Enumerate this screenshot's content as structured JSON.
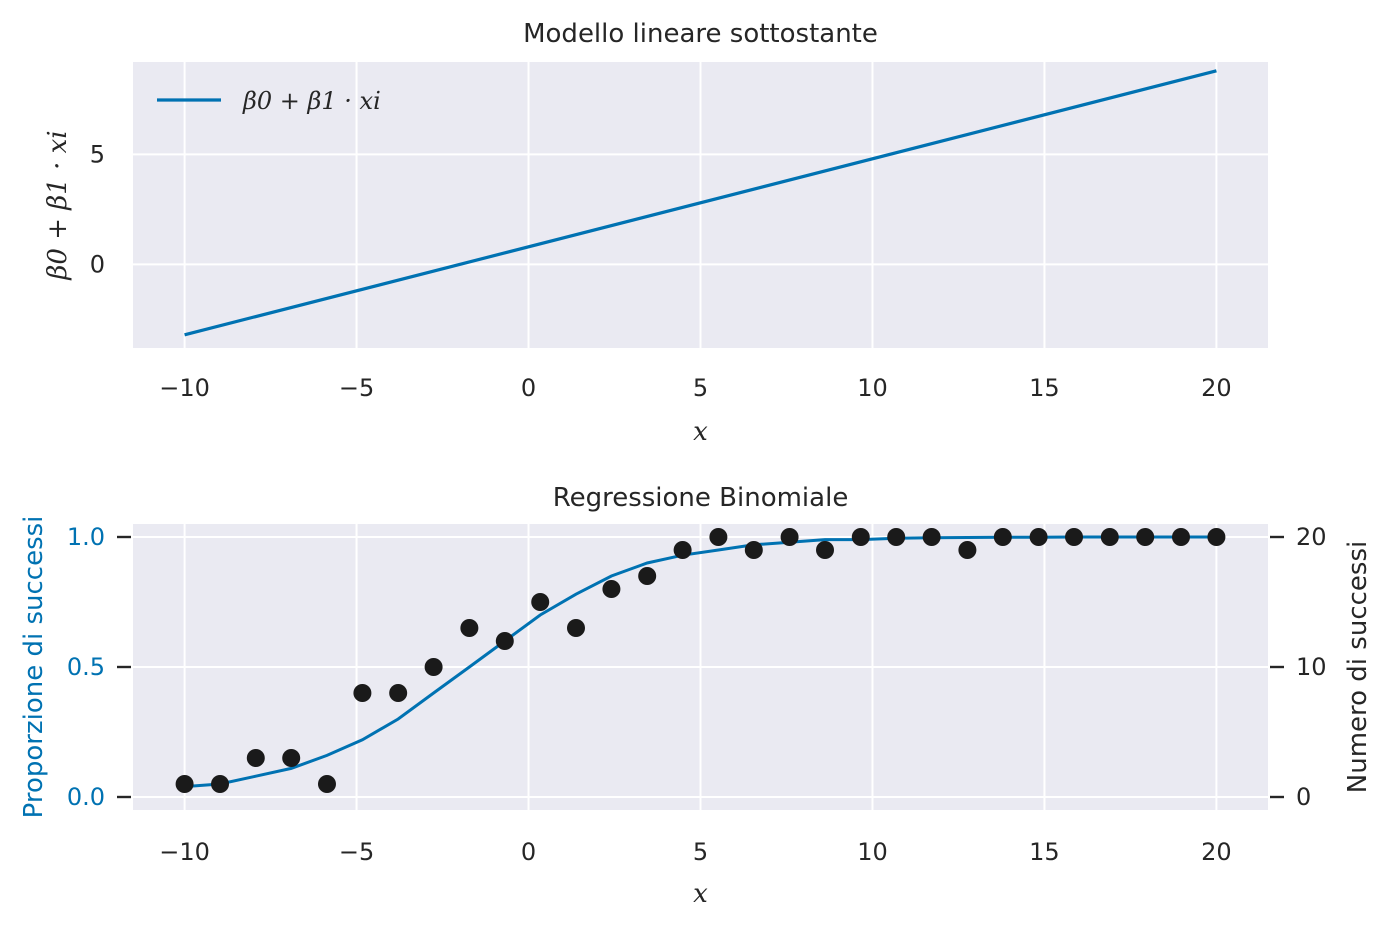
{
  "chart_data": [
    {
      "type": "line",
      "title": "Modello lineare sottostante",
      "xlabel": "x",
      "ylabel": "β0 + β1 · xi",
      "xlim": [
        -11.5,
        21.5
      ],
      "ylim": [
        -3.8,
        9.2
      ],
      "xticks": [
        "−10",
        "−5",
        "0",
        "5",
        "10",
        "15",
        "20"
      ],
      "xtick_values": [
        -10,
        -5,
        0,
        5,
        10,
        15,
        20
      ],
      "yticks": [
        "0",
        "5"
      ],
      "ytick_values": [
        0,
        5
      ],
      "grid": true,
      "legend_position": "top-left",
      "series": [
        {
          "name": "β0 + β1 · xi",
          "color": "#0072b2",
          "x": [
            -10,
            20
          ],
          "y": [
            -3.2,
            8.8
          ]
        }
      ]
    },
    {
      "type": "scatter",
      "title": "Regressione Binomiale",
      "xlabel": "x",
      "ylabel_left": "Proporzione di successi",
      "ylabel_right": "Numero di successi",
      "xlim": [
        -11.5,
        21.5
      ],
      "ylim_left": [
        -0.05,
        1.05
      ],
      "ylim_right": [
        -1,
        21
      ],
      "xticks": [
        "−10",
        "−5",
        "0",
        "5",
        "10",
        "15",
        "20"
      ],
      "xtick_values": [
        -10,
        -5,
        0,
        5,
        10,
        15,
        20
      ],
      "yticks_left": [
        "0.0",
        "0.5",
        "1.0"
      ],
      "ytick_values_left": [
        0.0,
        0.5,
        1.0
      ],
      "yticks_right": [
        "0",
        "10",
        "20"
      ],
      "ytick_values_right": [
        0,
        10,
        20
      ],
      "grid": true,
      "left_axis_color": "#0072b2",
      "right_axis_color": "#262626",
      "curve": {
        "color": "#0072b2",
        "x": [
          -10,
          -8.97,
          -7.93,
          -6.9,
          -5.86,
          -4.83,
          -3.79,
          -2.76,
          -1.72,
          -0.69,
          0.34,
          1.38,
          2.41,
          3.45,
          4.48,
          5.52,
          6.55,
          7.59,
          8.62,
          9.66,
          10.69,
          11.72,
          12.76,
          13.79,
          14.83,
          15.86,
          16.9,
          17.93,
          18.97,
          20
        ],
        "y": [
          0.04,
          0.05,
          0.08,
          0.11,
          0.16,
          0.22,
          0.3,
          0.4,
          0.5,
          0.6,
          0.7,
          0.78,
          0.85,
          0.9,
          0.93,
          0.95,
          0.97,
          0.98,
          0.99,
          0.99,
          0.995,
          0.997,
          0.998,
          0.999,
          0.999,
          1.0,
          1.0,
          1.0,
          1.0,
          1.0
        ]
      },
      "points": {
        "color": "#1a1a1a",
        "x": [
          -10,
          -8.97,
          -7.93,
          -6.9,
          -5.86,
          -4.83,
          -3.79,
          -2.76,
          -1.72,
          -0.69,
          0.34,
          1.38,
          2.41,
          3.45,
          4.48,
          5.52,
          6.55,
          7.59,
          8.62,
          9.66,
          10.69,
          11.72,
          12.76,
          13.79,
          14.83,
          15.86,
          16.9,
          17.93,
          18.97,
          20
        ],
        "counts": [
          1,
          1,
          3,
          3,
          1,
          8,
          8,
          10,
          13,
          12,
          15,
          13,
          16,
          17,
          19,
          20,
          19,
          20,
          19,
          20,
          20,
          20,
          19,
          20,
          20,
          20,
          20,
          20,
          20,
          20
        ]
      }
    }
  ]
}
